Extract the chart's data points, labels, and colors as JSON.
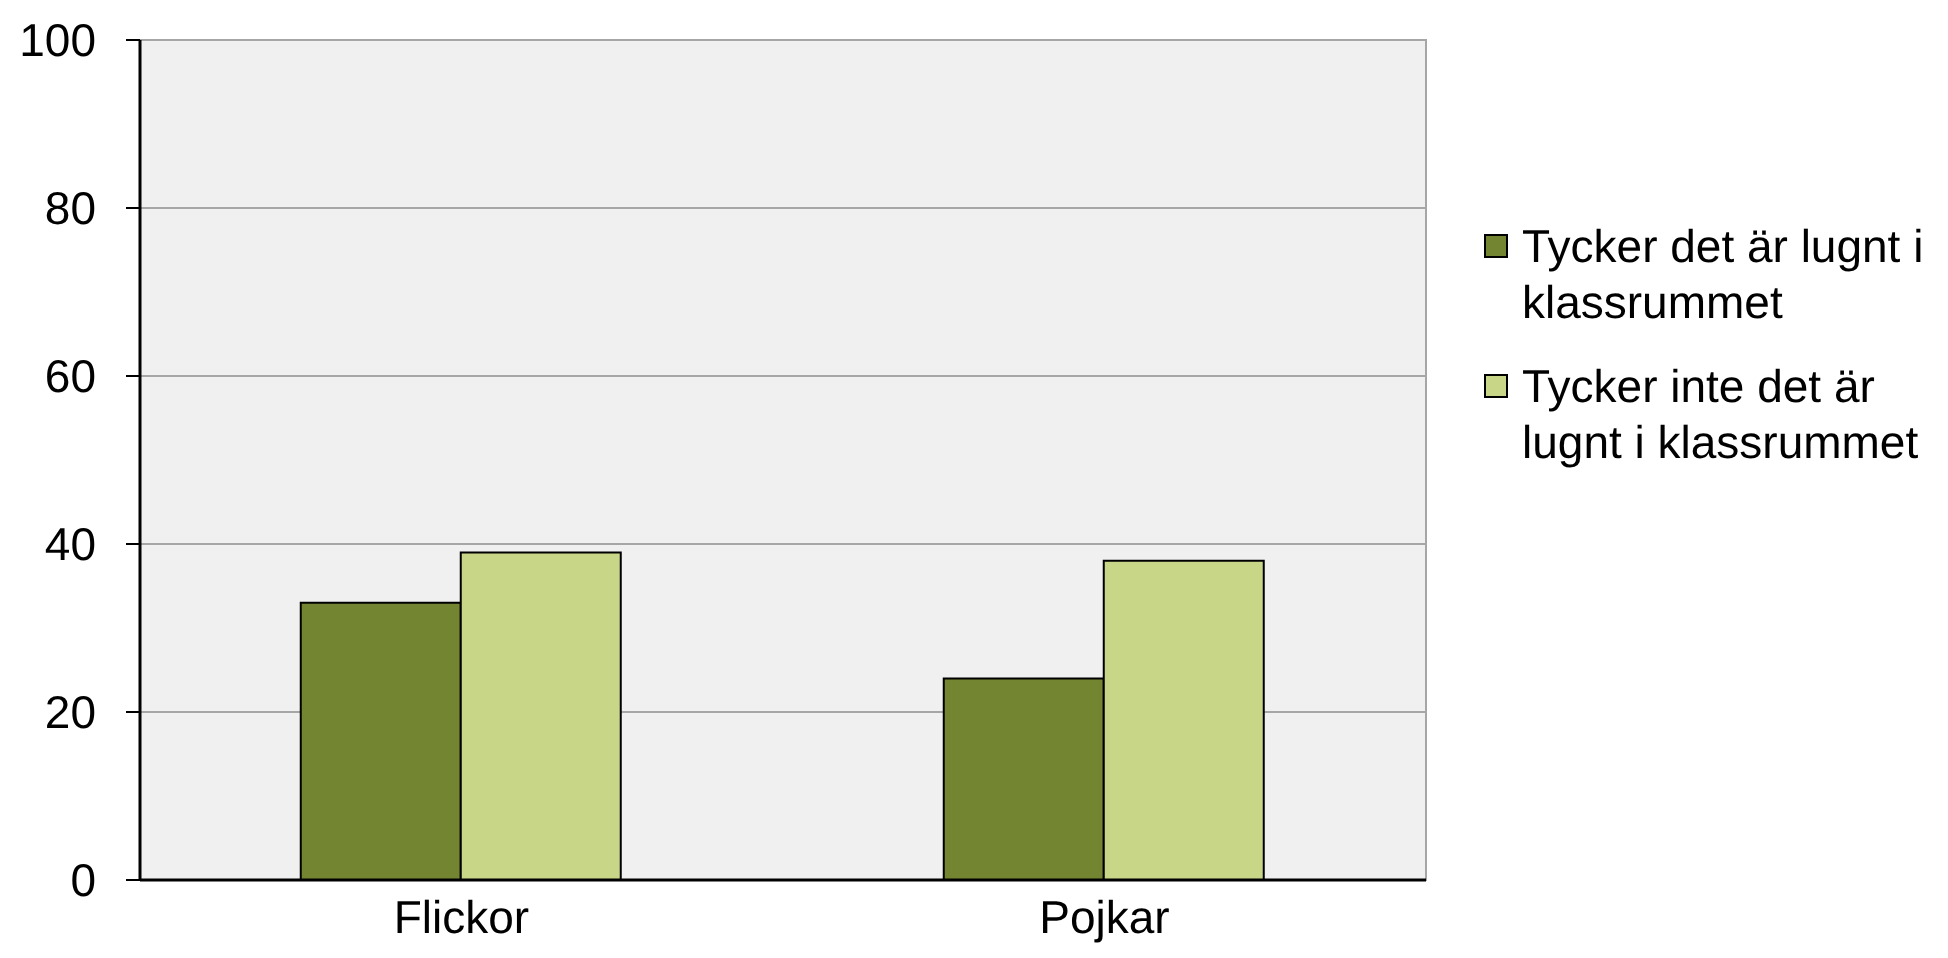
{
  "chart_data": {
    "type": "bar",
    "categories": [
      "Flickor",
      "Pojkar"
    ],
    "series": [
      {
        "name": "Tycker det är lugnt i klassrummet",
        "color": "#748531",
        "values": [
          33,
          24
        ]
      },
      {
        "name": "Tycker inte det är lugnt i klassrummet",
        "color": "#c8d688",
        "values": [
          39,
          38
        ]
      }
    ],
    "ylim": [
      0,
      100
    ],
    "yticks": [
      0,
      20,
      40,
      60,
      80,
      100
    ],
    "grid": "y",
    "legend": "right"
  }
}
